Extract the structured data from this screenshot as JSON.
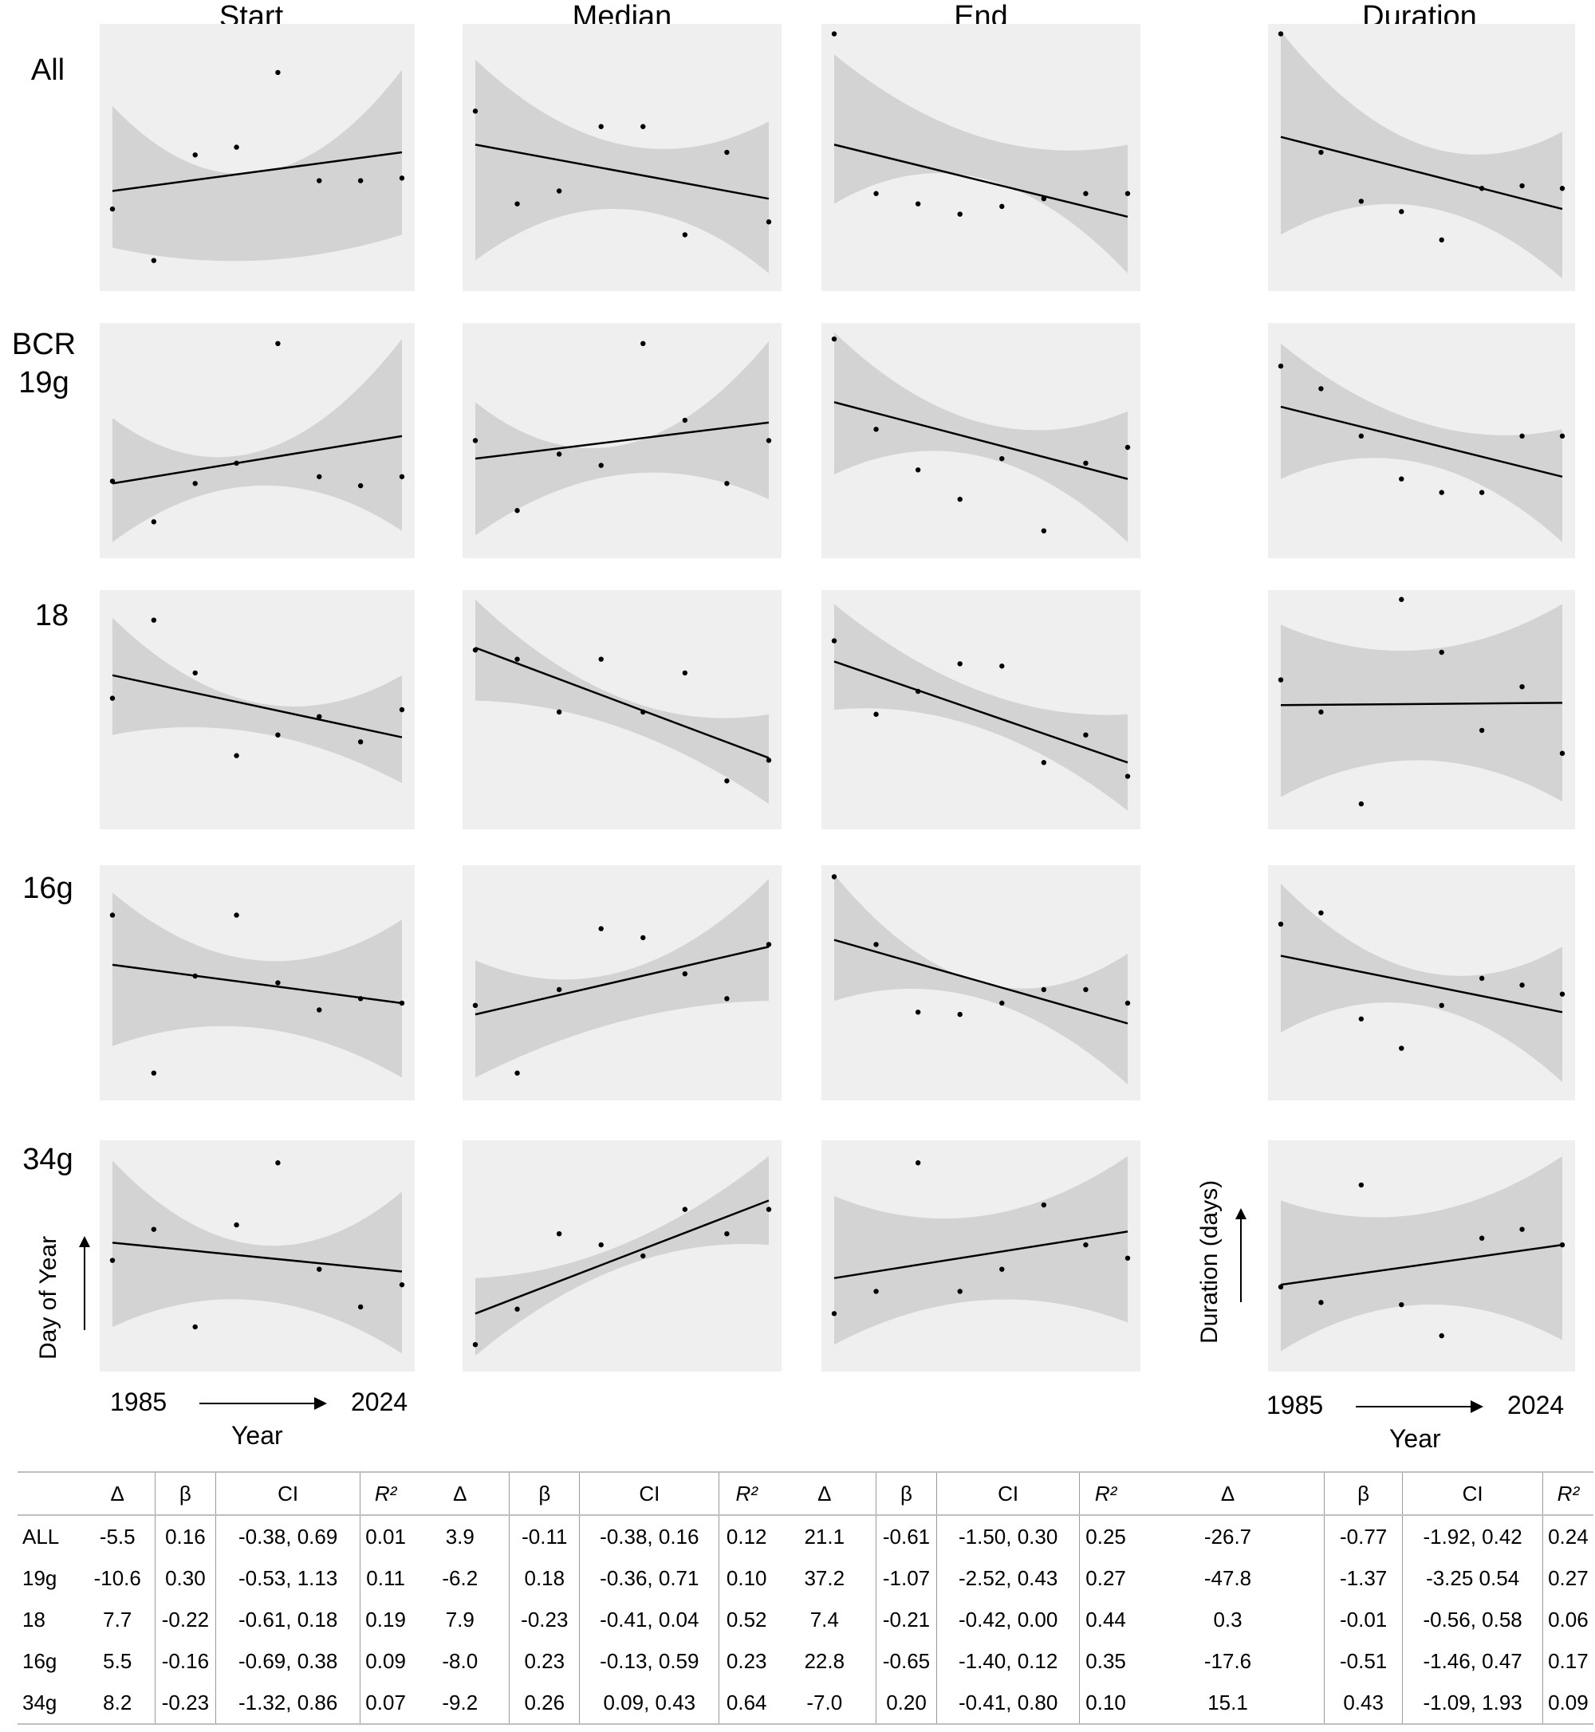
{
  "columns": [
    "Start",
    "Median",
    "End",
    "Duration"
  ],
  "rows": [
    "All",
    "BCR\n19g",
    "18",
    "16g",
    "34g"
  ],
  "axes": {
    "y_label_left": "Day of Year",
    "y_label_right": "Duration (days)",
    "x_label": "Year",
    "x_start": "1985",
    "x_end": "2024"
  },
  "chart_data": {
    "type": "scatter",
    "description_of_values": "normalized y (0 = bottom, 1 = top of each panel); x index 0-7 evenly spaced 1985-2024",
    "panels": [
      [
        {
          "points": [
            0.3,
            0.1,
            0.51,
            0.54,
            0.83,
            0.41,
            0.41,
            0.42
          ],
          "fit": [
            0.37,
            0.52
          ],
          "ci_lo": [
            0.15,
            0.1,
            0.2
          ],
          "ci_hi": [
            0.7,
            0.44,
            0.84
          ]
        },
        {
          "points": [
            0.68,
            0.32,
            0.37,
            0.62,
            0.62,
            0.2,
            0.52,
            0.25
          ],
          "fit": [
            0.55,
            0.34
          ],
          "ci_lo": [
            0.1,
            0.3,
            0.05
          ],
          "ci_hi": [
            0.88,
            0.55,
            0.64
          ]
        },
        {
          "points": [
            0.98,
            0.36,
            0.32,
            0.28,
            0.31,
            0.34,
            0.36,
            0.36
          ],
          "fit": [
            0.55,
            0.27
          ],
          "ci_lo": [
            0.32,
            0.42,
            0.05
          ],
          "ci_hi": [
            0.9,
            0.58,
            0.55
          ]
        },
        {
          "points": [
            0.98,
            0.52,
            0.33,
            0.29,
            0.18,
            0.38,
            0.39,
            0.38
          ],
          "fit": [
            0.58,
            0.3
          ],
          "ci_lo": [
            0.2,
            0.31,
            0.03
          ],
          "ci_hi": [
            0.99,
            0.55,
            0.6
          ]
        }
      ],
      [
        {
          "points": [
            0.32,
            0.14,
            0.31,
            0.4,
            0.93,
            0.34,
            0.3,
            0.34
          ],
          "fit": [
            0.31,
            0.52
          ],
          "ci_lo": [
            0.05,
            0.3,
            0.1
          ],
          "ci_hi": [
            0.6,
            0.45,
            0.95
          ]
        },
        {
          "points": [
            0.5,
            0.19,
            0.44,
            0.39,
            0.93,
            0.59,
            0.31,
            0.5
          ],
          "fit": [
            0.42,
            0.58
          ],
          "ci_lo": [
            0.08,
            0.35,
            0.24
          ],
          "ci_hi": [
            0.67,
            0.48,
            0.94
          ]
        },
        {
          "points": [
            0.95,
            0.55,
            0.37,
            0.24,
            0.42,
            0.1,
            0.4,
            0.47
          ],
          "fit": [
            0.67,
            0.33
          ],
          "ci_lo": [
            0.35,
            0.43,
            0.05
          ],
          "ci_hi": [
            0.98,
            0.58,
            0.63
          ]
        },
        {
          "points": [
            0.83,
            0.73,
            0.52,
            0.33,
            0.27,
            0.27,
            0.52,
            0.52
          ],
          "fit": [
            0.65,
            0.34
          ],
          "ci_lo": [
            0.33,
            0.4,
            0.05
          ],
          "ci_hi": [
            0.93,
            0.58,
            0.55
          ]
        }
      ],
      [
        {
          "points": [
            0.55,
            0.89,
            0.66,
            0.3,
            0.39,
            0.47,
            0.36,
            0.5
          ],
          "fit": [
            0.65,
            0.38
          ],
          "ci_lo": [
            0.39,
            0.4,
            0.18
          ],
          "ci_hi": [
            0.9,
            0.53,
            0.65
          ]
        },
        {
          "points": [
            0.76,
            0.72,
            0.49,
            0.72,
            0.49,
            0.66,
            0.19,
            0.28
          ],
          "fit": [
            0.77,
            0.29
          ],
          "ci_lo": [
            0.54,
            0.42,
            0.09
          ],
          "ci_hi": [
            0.98,
            0.55,
            0.48
          ]
        },
        {
          "points": [
            0.8,
            0.48,
            0.58,
            0.7,
            0.69,
            0.27,
            0.39,
            0.21
          ],
          "fit": [
            0.71,
            0.27
          ],
          "ci_lo": [
            0.5,
            0.42,
            0.06
          ],
          "ci_hi": [
            0.96,
            0.58,
            0.48
          ]
        },
        {
          "points": [
            0.63,
            0.49,
            0.09,
            0.98,
            0.75,
            0.41,
            0.6,
            0.31
          ],
          "fit": [
            0.52,
            0.53
          ],
          "ci_lo": [
            0.12,
            0.28,
            0.1
          ],
          "ci_hi": [
            0.87,
            0.76,
            0.96
          ]
        }
      ],
      [
        {
          "points": [
            0.8,
            0.1,
            0.53,
            0.8,
            0.5,
            0.38,
            0.43,
            0.41
          ],
          "fit": [
            0.58,
            0.41
          ],
          "ci_lo": [
            0.22,
            0.3,
            0.08
          ],
          "ci_hi": [
            0.9,
            0.6,
            0.78
          ]
        },
        {
          "points": [
            0.4,
            0.1,
            0.47,
            0.74,
            0.7,
            0.54,
            0.43,
            0.67
          ],
          "fit": [
            0.36,
            0.66
          ],
          "ci_lo": [
            0.08,
            0.33,
            0.42
          ],
          "ci_hi": [
            0.6,
            0.55,
            0.96
          ]
        },
        {
          "points": [
            0.97,
            0.67,
            0.37,
            0.36,
            0.41,
            0.47,
            0.47,
            0.41
          ],
          "fit": [
            0.69,
            0.32
          ],
          "ci_lo": [
            0.42,
            0.43,
            0.05
          ],
          "ci_hi": [
            0.98,
            0.5,
            0.63
          ]
        },
        {
          "points": [
            0.76,
            0.81,
            0.34,
            0.21,
            0.4,
            0.52,
            0.49,
            0.45
          ],
          "fit": [
            0.62,
            0.37
          ],
          "ci_lo": [
            0.28,
            0.4,
            0.06
          ],
          "ci_hi": [
            0.94,
            0.55,
            0.66
          ]
        }
      ],
      [
        {
          "points": [
            0.48,
            0.62,
            0.18,
            0.64,
            0.92,
            0.44,
            0.27,
            0.37
          ],
          "fit": [
            0.56,
            0.43
          ],
          "ci_lo": [
            0.18,
            0.3,
            0.06
          ],
          "ci_hi": [
            0.93,
            0.55,
            0.79
          ]
        },
        {
          "points": [
            0.1,
            0.26,
            0.6,
            0.55,
            0.5,
            0.71,
            0.6,
            0.71
          ],
          "fit": [
            0.24,
            0.75
          ],
          "ci_lo": [
            0.05,
            0.45,
            0.55
          ],
          "ci_hi": [
            0.4,
            0.55,
            0.95
          ]
        },
        {
          "points": [
            0.24,
            0.34,
            0.92,
            0.34,
            0.44,
            0.73,
            0.55,
            0.49
          ],
          "fit": [
            0.4,
            0.61
          ],
          "ci_lo": [
            0.1,
            0.3,
            0.2
          ],
          "ci_hi": [
            0.77,
            0.68,
            0.95
          ]
        },
        {
          "points": [
            0.36,
            0.29,
            0.82,
            0.28,
            0.14,
            0.58,
            0.62,
            0.55
          ],
          "fit": [
            0.37,
            0.55
          ],
          "ci_lo": [
            0.07,
            0.28,
            0.12
          ],
          "ci_hi": [
            0.75,
            0.69,
            0.95
          ]
        }
      ]
    ]
  },
  "table": {
    "group_headers": [
      "Δ",
      "β",
      "CI",
      "R²"
    ],
    "rows": [
      {
        "name": "ALL",
        "cells": [
          "-5.5",
          "0.16",
          "-0.38, 0.69",
          "0.01",
          "3.9",
          "-0.11",
          "-0.38, 0.16",
          "0.12",
          "21.1",
          "-0.61",
          "-1.50, 0.30",
          "0.25",
          "-26.7",
          "-0.77",
          "-1.92, 0.42",
          "0.24"
        ]
      },
      {
        "name": "19g",
        "cells": [
          "-10.6",
          "0.30",
          "-0.53, 1.13",
          "0.11",
          "-6.2",
          "0.18",
          "-0.36, 0.71",
          "0.10",
          "37.2",
          "-1.07",
          "-2.52, 0.43",
          "0.27",
          "-47.8",
          "-1.37",
          "-3.25 0.54",
          "0.27"
        ]
      },
      {
        "name": "18",
        "cells": [
          "7.7",
          "-0.22",
          "-0.61, 0.18",
          "0.19",
          "7.9",
          "-0.23",
          "-0.41, 0.04",
          "0.52",
          "7.4",
          "-0.21",
          "-0.42, 0.00",
          "0.44",
          "0.3",
          "-0.01",
          "-0.56, 0.58",
          "0.06"
        ]
      },
      {
        "name": "16g",
        "cells": [
          "5.5",
          "-0.16",
          "-0.69, 0.38",
          "0.09",
          "-8.0",
          "0.23",
          "-0.13, 0.59",
          "0.23",
          "22.8",
          "-0.65",
          "-1.40, 0.12",
          "0.35",
          "-17.6",
          "-0.51",
          "-1.46, 0.47",
          "0.17"
        ]
      },
      {
        "name": "34g",
        "cells": [
          "8.2",
          "-0.23",
          "-1.32,  0.86",
          "0.07",
          "-9.2",
          "0.26",
          "0.09, 0.43",
          "0.64",
          "-7.0",
          "0.20",
          "-0.41, 0.80",
          "0.10",
          "15.1",
          "0.43",
          "-1.09, 1.93",
          "0.09"
        ]
      }
    ]
  }
}
